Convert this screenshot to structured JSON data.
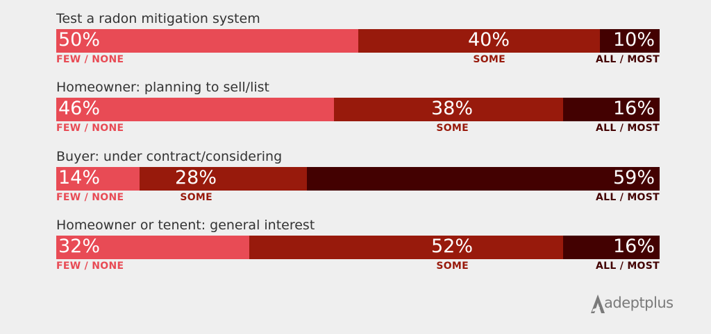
{
  "colors": {
    "few_none": "#e84b55",
    "some": "#981a0c",
    "all_most": "#430101",
    "title_text": "#333333",
    "logo": "#7a7a7a"
  },
  "chart_data": {
    "type": "bar",
    "orientation": "horizontal-stacked",
    "categories": [
      "Test a radon mitigation system",
      "Homeowner: planning to sell/list",
      "Buyer: under contract/considering",
      "Homeowner or tenent: general interest"
    ],
    "series": [
      {
        "name": "FEW / NONE",
        "values": [
          50,
          46,
          14,
          32
        ]
      },
      {
        "name": "SOME",
        "values": [
          40,
          38,
          28,
          52
        ]
      },
      {
        "name": "ALL / MOST",
        "values": [
          10,
          16,
          59,
          16
        ]
      }
    ],
    "value_suffix": "%"
  },
  "logo": {
    "text": "adeptplus"
  }
}
